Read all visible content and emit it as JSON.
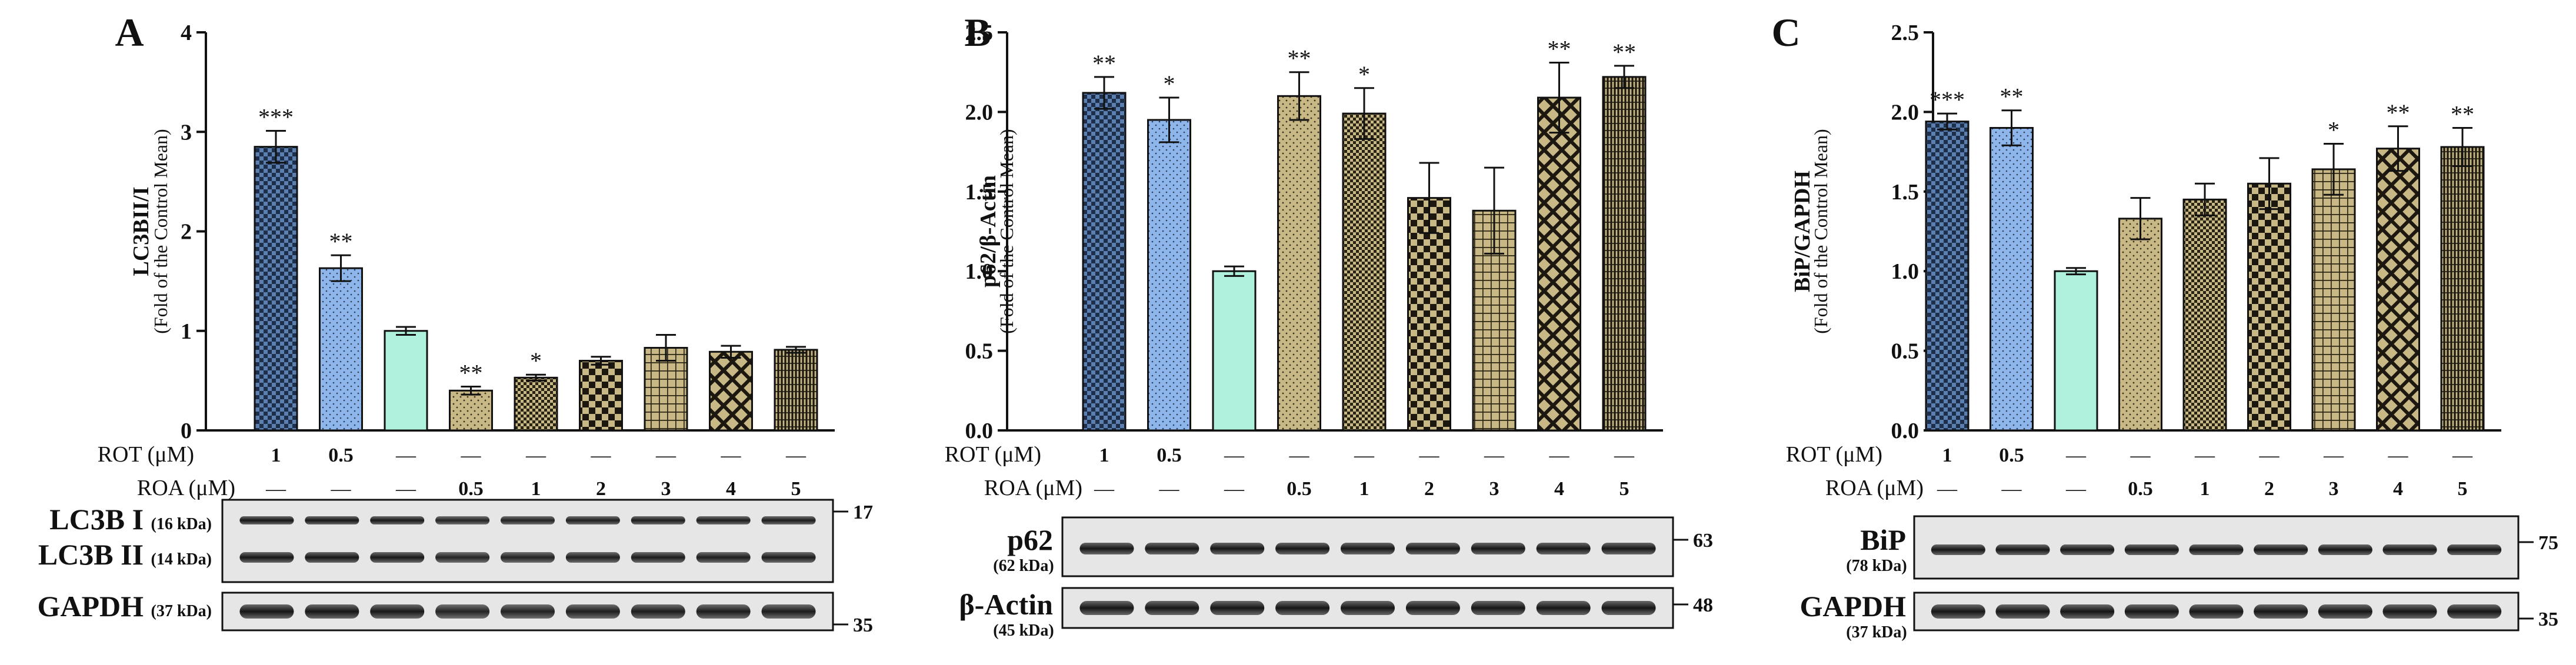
{
  "colors": {
    "rot1": "#5b7fae",
    "rot05": "#8fb6ea",
    "control": "#aef2dd",
    "roa": "#c8b886",
    "axis": "#111111",
    "blot_bg": "#e8e8e8",
    "band": "#1c1c1c"
  },
  "conditions": {
    "rot_label": "ROT (μM)",
    "roa_label": "ROA (μM)",
    "rot_values": [
      "1",
      "0.5",
      "—",
      "—",
      "—",
      "—",
      "—",
      "—",
      "—"
    ],
    "roa_values": [
      "—",
      "—",
      "—",
      "0.5",
      "1",
      "2",
      "3",
      "4",
      "5"
    ]
  },
  "chart_data": [
    {
      "type": "bar",
      "panel_label": "A",
      "ylabel": "LC3BII/I",
      "ylabel_sub": "(Fold of the Control Mean)",
      "ylim": [
        0,
        4
      ],
      "yticks": [
        "0",
        "1",
        "2",
        "3",
        "4"
      ],
      "categories": [
        "ROT 1",
        "ROT 0.5",
        "Control",
        "ROA 0.5",
        "ROA 1",
        "ROA 2",
        "ROA 3",
        "ROA 4",
        "ROA 5"
      ],
      "values": [
        2.85,
        1.63,
        1.0,
        0.4,
        0.53,
        0.7,
        0.83,
        0.79,
        0.81
      ],
      "errors": [
        0.16,
        0.13,
        0.04,
        0.04,
        0.03,
        0.04,
        0.13,
        0.06,
        0.03
      ],
      "significance": [
        "***",
        "**",
        "",
        "**",
        "*",
        "",
        "",
        "",
        ""
      ],
      "patterns": [
        "rot1",
        "rot05",
        "solid",
        "dots",
        "dense",
        "checker",
        "grid",
        "diamond",
        "stripes"
      ],
      "blots": [
        {
          "name": "LC3B I",
          "kda": "(16 kDa)",
          "marker": "17"
        },
        {
          "name": "LC3B II",
          "kda": "(14 kDa)",
          "marker": ""
        },
        {
          "name": "GAPDH",
          "kda": "(37 kDa)",
          "marker": "35"
        }
      ]
    },
    {
      "type": "bar",
      "panel_label": "B",
      "ylabel": "p62/β-Actin",
      "ylabel_sub": "(Fold of the Control Mean)",
      "ylim": [
        0,
        2.5
      ],
      "yticks": [
        "0.0",
        "0.5",
        "1.0",
        "1.5",
        "2.0",
        "2.5"
      ],
      "categories": [
        "ROT 1",
        "ROT 0.5",
        "Control",
        "ROA 0.5",
        "ROA 1",
        "ROA 2",
        "ROA 3",
        "ROA 4",
        "ROA 5"
      ],
      "values": [
        2.12,
        1.95,
        1.0,
        2.1,
        1.99,
        1.46,
        1.38,
        2.09,
        2.22
      ],
      "errors": [
        0.1,
        0.14,
        0.03,
        0.15,
        0.16,
        0.22,
        0.27,
        0.22,
        0.07
      ],
      "significance": [
        "**",
        "*",
        "",
        "**",
        "*",
        "",
        "",
        "**",
        "**"
      ],
      "patterns": [
        "rot1",
        "rot05",
        "solid",
        "dots",
        "dense",
        "checker",
        "grid",
        "diamond",
        "stripes"
      ],
      "blots": [
        {
          "name": "p62",
          "kda": "(62 kDa)",
          "marker": "63"
        },
        {
          "name": "β-Actin",
          "kda": "(45 kDa)",
          "marker": "48"
        }
      ]
    },
    {
      "type": "bar",
      "panel_label": "C",
      "ylabel": "BiP/GAPDH",
      "ylabel_sub": "(Fold of the Control Mean)",
      "ylim": [
        0,
        2.5
      ],
      "yticks": [
        "0.0",
        "0.5",
        "1.0",
        "1.5",
        "2.0",
        "2.5"
      ],
      "categories": [
        "ROT 1",
        "ROT 0.5",
        "Control",
        "ROA 0.5",
        "ROA 1",
        "ROA 2",
        "ROA 3",
        "ROA 4",
        "ROA 5"
      ],
      "values": [
        1.94,
        1.9,
        1.0,
        1.33,
        1.45,
        1.55,
        1.64,
        1.77,
        1.78
      ],
      "errors": [
        0.05,
        0.11,
        0.02,
        0.13,
        0.1,
        0.16,
        0.16,
        0.14,
        0.12
      ],
      "significance": [
        "***",
        "**",
        "",
        "",
        "",
        "",
        "*",
        "**",
        "**"
      ],
      "patterns": [
        "rot1",
        "rot05",
        "solid",
        "dots",
        "dense",
        "checker",
        "grid",
        "diamond",
        "stripes"
      ],
      "blots": [
        {
          "name": "BiP",
          "kda": "(78 kDa)",
          "marker": "75"
        },
        {
          "name": "GAPDH",
          "kda": "(37 kDa)",
          "marker": "35"
        }
      ]
    }
  ]
}
